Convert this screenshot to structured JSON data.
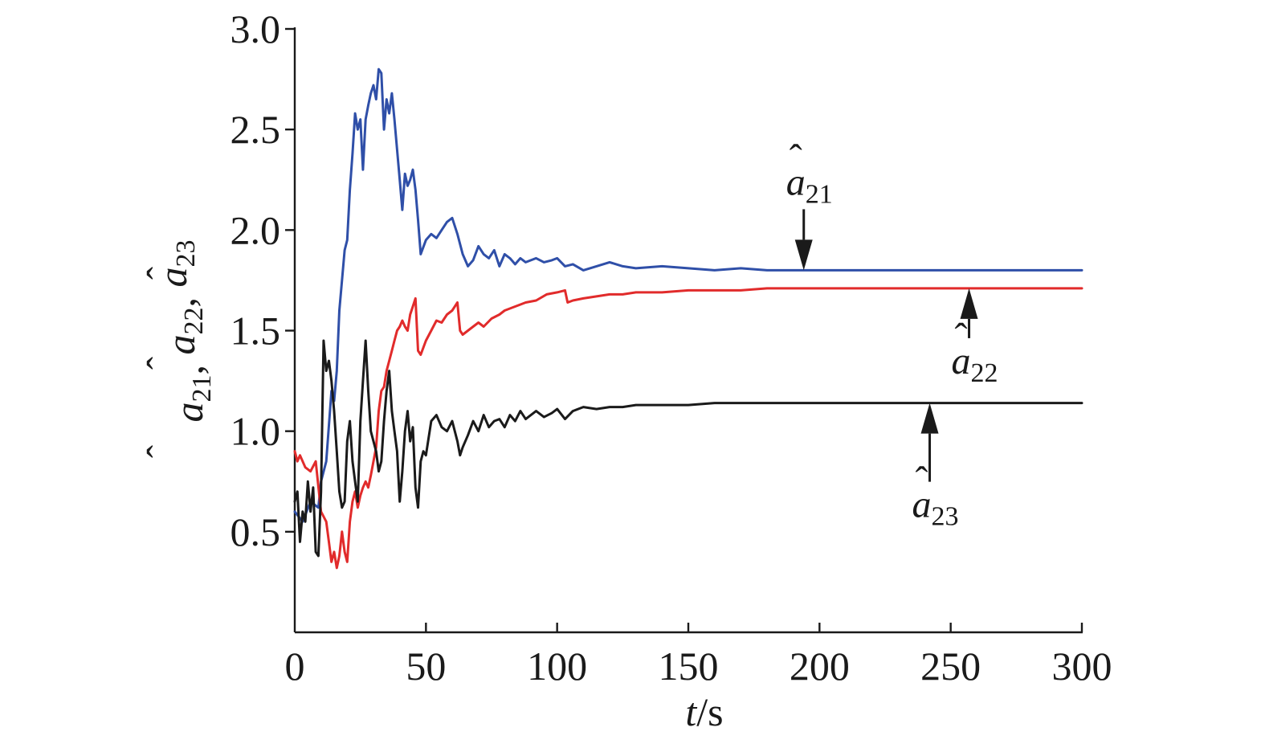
{
  "chart_data": {
    "type": "line",
    "xlabel": {
      "var": "t",
      "unit": "/s"
    },
    "ylabel": {
      "parts": [
        {
          "base": "a",
          "sub": "21"
        },
        {
          "base": "a",
          "sub": "22"
        },
        {
          "base": "a",
          "sub": "23"
        }
      ],
      "separator": ", "
    },
    "xlim": [
      0,
      300
    ],
    "ylim": [
      0.0,
      3.0
    ],
    "xticks": [
      0,
      50,
      100,
      150,
      200,
      250,
      300
    ],
    "xtick_labels": [
      "0",
      "50",
      "100",
      "150",
      "200",
      "250",
      "300"
    ],
    "yticks": [
      0.5,
      1.0,
      1.5,
      2.0,
      2.5,
      3.0
    ],
    "ytick_labels": [
      "0.5",
      "1.0",
      "1.5",
      "2.0",
      "2.5",
      "3.0"
    ],
    "grid": false,
    "series": [
      {
        "name": "a21",
        "label_base": "a",
        "label_sub": "21",
        "color": "#2f4fa8",
        "x": [
          0,
          3,
          6,
          9,
          10,
          12,
          14,
          15,
          16,
          17,
          19,
          20,
          21,
          22,
          23,
          24,
          25,
          26,
          27,
          28,
          29,
          30,
          31,
          32,
          33,
          34,
          35,
          36,
          37,
          38,
          39,
          40,
          41,
          42,
          43,
          44,
          45,
          46,
          47,
          48,
          50,
          52,
          54,
          56,
          58,
          60,
          62,
          64,
          66,
          68,
          70,
          72,
          74,
          76,
          78,
          80,
          82,
          84,
          86,
          88,
          90,
          92,
          95,
          98,
          100,
          103,
          106,
          110,
          115,
          120,
          125,
          130,
          140,
          150,
          160,
          170,
          180,
          190,
          200,
          210,
          212,
          250,
          300
        ],
        "y": [
          0.6,
          0.55,
          0.65,
          0.62,
          0.75,
          0.85,
          1.2,
          1.15,
          1.3,
          1.6,
          1.9,
          1.95,
          2.2,
          2.38,
          2.58,
          2.5,
          2.55,
          2.3,
          2.55,
          2.62,
          2.68,
          2.72,
          2.65,
          2.8,
          2.78,
          2.5,
          2.65,
          2.58,
          2.68,
          2.55,
          2.4,
          2.25,
          2.1,
          2.28,
          2.22,
          2.25,
          2.3,
          2.2,
          2.05,
          1.88,
          1.95,
          1.98,
          1.96,
          2.0,
          2.04,
          2.06,
          1.98,
          1.88,
          1.82,
          1.85,
          1.92,
          1.88,
          1.86,
          1.9,
          1.82,
          1.88,
          1.86,
          1.83,
          1.86,
          1.84,
          1.85,
          1.86,
          1.84,
          1.85,
          1.86,
          1.82,
          1.83,
          1.8,
          1.82,
          1.84,
          1.82,
          1.81,
          1.82,
          1.81,
          1.8,
          1.81,
          1.8,
          1.8,
          1.8,
          1.8,
          1.8,
          1.8,
          1.8
        ]
      },
      {
        "name": "a22",
        "label_base": "a",
        "label_sub": "22",
        "color": "#e12b2b",
        "x": [
          0,
          1,
          2,
          4,
          6,
          8,
          10,
          12,
          13,
          14,
          15,
          16,
          17,
          18,
          19,
          20,
          21,
          22,
          23,
          24,
          25,
          26,
          27,
          28,
          29,
          30,
          31,
          32,
          33,
          34,
          35,
          36,
          37,
          38,
          39,
          40,
          41,
          42,
          43,
          44,
          45,
          46,
          47,
          48,
          50,
          52,
          54,
          56,
          58,
          60,
          62,
          63,
          64,
          66,
          68,
          70,
          72,
          75,
          78,
          80,
          84,
          88,
          92,
          96,
          100,
          103,
          104,
          106,
          110,
          115,
          120,
          125,
          130,
          140,
          150,
          160,
          170,
          180,
          190,
          200,
          250,
          300
        ],
        "y": [
          0.9,
          0.85,
          0.88,
          0.82,
          0.8,
          0.85,
          0.6,
          0.55,
          0.45,
          0.35,
          0.4,
          0.32,
          0.38,
          0.5,
          0.4,
          0.35,
          0.55,
          0.65,
          0.7,
          0.62,
          0.68,
          0.72,
          0.75,
          0.72,
          0.78,
          0.85,
          0.92,
          1.1,
          1.2,
          1.22,
          1.3,
          1.35,
          1.4,
          1.45,
          1.5,
          1.52,
          1.55,
          1.52,
          1.5,
          1.58,
          1.62,
          1.66,
          1.4,
          1.38,
          1.45,
          1.5,
          1.55,
          1.54,
          1.58,
          1.6,
          1.64,
          1.5,
          1.48,
          1.5,
          1.52,
          1.54,
          1.52,
          1.56,
          1.58,
          1.6,
          1.62,
          1.64,
          1.65,
          1.68,
          1.69,
          1.7,
          1.64,
          1.65,
          1.66,
          1.67,
          1.68,
          1.68,
          1.69,
          1.69,
          1.7,
          1.7,
          1.7,
          1.71,
          1.71,
          1.71,
          1.71,
          1.71
        ]
      },
      {
        "name": "a23",
        "label_base": "a",
        "label_sub": "23",
        "color": "#1a1a1a",
        "x": [
          0,
          1,
          2,
          3,
          4,
          5,
          6,
          7,
          8,
          9,
          10,
          11,
          12,
          13,
          14,
          15,
          16,
          17,
          18,
          19,
          20,
          21,
          22,
          23,
          24,
          25,
          26,
          27,
          28,
          29,
          30,
          31,
          32,
          33,
          34,
          35,
          36,
          37,
          38,
          39,
          40,
          41,
          42,
          43,
          44,
          45,
          46,
          47,
          48,
          49,
          50,
          52,
          54,
          56,
          58,
          60,
          62,
          63,
          64,
          66,
          68,
          70,
          72,
          74,
          76,
          78,
          80,
          82,
          84,
          86,
          88,
          90,
          92,
          95,
          98,
          100,
          103,
          106,
          110,
          115,
          120,
          125,
          130,
          140,
          150,
          160,
          170,
          180,
          190,
          200,
          250,
          300
        ],
        "y": [
          0.65,
          0.7,
          0.45,
          0.6,
          0.55,
          0.75,
          0.6,
          0.72,
          0.4,
          0.38,
          0.7,
          1.45,
          1.3,
          1.35,
          1.25,
          1.1,
          0.9,
          0.7,
          0.62,
          0.65,
          0.95,
          1.05,
          0.85,
          0.75,
          0.65,
          1.05,
          1.25,
          1.45,
          1.2,
          1.0,
          0.95,
          0.9,
          0.8,
          0.85,
          1.05,
          1.2,
          1.3,
          1.1,
          1.0,
          0.9,
          0.65,
          0.8,
          1.0,
          1.1,
          0.95,
          1.02,
          0.72,
          0.62,
          0.85,
          0.9,
          0.88,
          1.05,
          1.08,
          1.02,
          1.0,
          1.05,
          0.95,
          0.88,
          0.92,
          0.98,
          1.05,
          1.0,
          1.08,
          1.02,
          1.05,
          1.06,
          1.02,
          1.08,
          1.05,
          1.1,
          1.06,
          1.08,
          1.1,
          1.07,
          1.09,
          1.11,
          1.06,
          1.1,
          1.12,
          1.11,
          1.12,
          1.12,
          1.13,
          1.13,
          1.13,
          1.14,
          1.14,
          1.14,
          1.14,
          1.14,
          1.14,
          1.14
        ]
      }
    ],
    "annotations": [
      {
        "base": "a",
        "sub": "21",
        "series": "a21",
        "arrow_x": 194,
        "arrow_y": 1.8,
        "side": "above"
      },
      {
        "base": "a",
        "sub": "22",
        "series": "a22",
        "arrow_x": 257,
        "arrow_y": 1.71,
        "side": "below"
      },
      {
        "base": "a",
        "sub": "23",
        "series": "a23",
        "arrow_x": 242,
        "arrow_y": 1.14,
        "side": "below"
      }
    ]
  }
}
